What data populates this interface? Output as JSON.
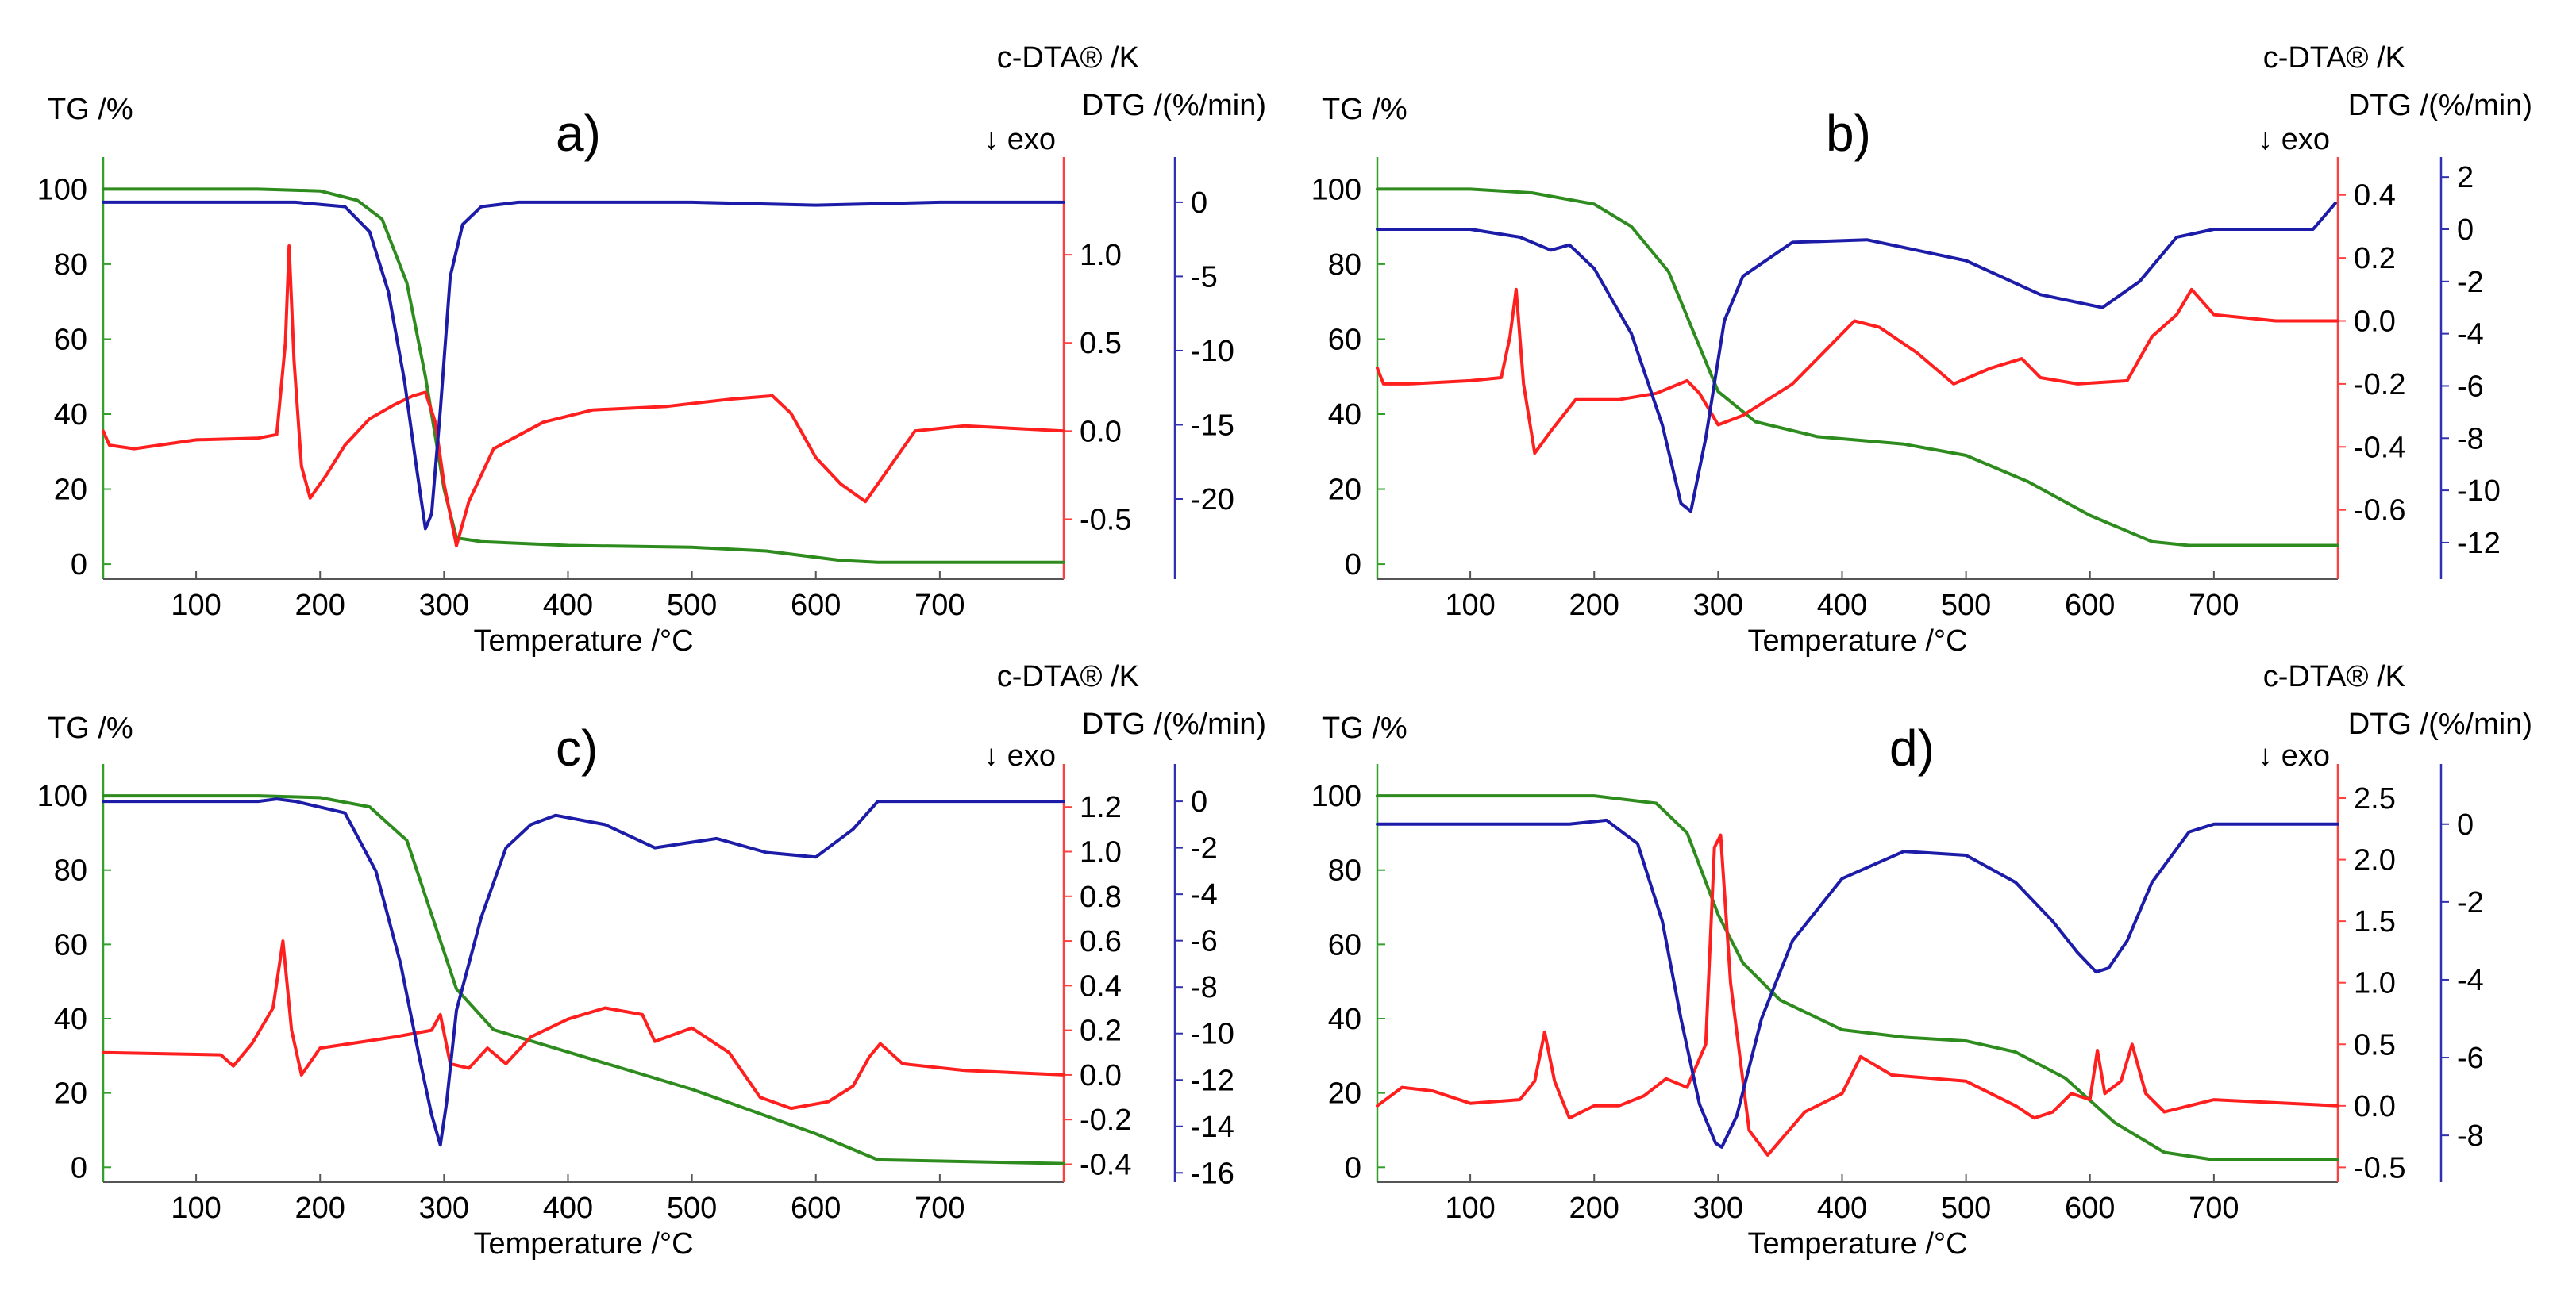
{
  "colors": {
    "tg": "#2e8b1e",
    "dta": "#ff1f1f",
    "dtg": "#1c1ca8",
    "tg_axis": "#33a02c",
    "dta_axis": "#ff4040",
    "dtg_axis": "#3030b0",
    "text": "#000000"
  },
  "chart_data": [
    {
      "panel": "a)",
      "type": "line",
      "title": "",
      "xlabel": "Temperature /°C",
      "xticks": [
        100,
        200,
        300,
        400,
        500,
        600,
        700
      ],
      "xlim": [
        25,
        800
      ],
      "axes": {
        "tg": {
          "label": "TG /%",
          "lim": [
            -4,
            106
          ],
          "ticks": [
            0,
            20,
            40,
            60,
            80,
            100
          ]
        },
        "dta": {
          "label": "c-DTA® /K",
          "exo": "↓ exo",
          "lim": [
            -0.84,
            1.5
          ],
          "ticks": [
            -0.5,
            0.0,
            0.5,
            1.0
          ],
          "tick_labels": [
            "-0.5",
            "0.0",
            "0.5",
            "1.0"
          ]
        },
        "dtg": {
          "label": "DTG /(%/min)",
          "lim": [
            -25.4,
            2.4
          ],
          "ticks": [
            -20,
            -15,
            -10,
            -5,
            0
          ]
        }
      },
      "series": [
        {
          "name": "TG",
          "axis": "tg",
          "x": [
            25,
            150,
            200,
            230,
            250,
            270,
            285,
            300,
            310,
            330,
            400,
            500,
            560,
            620,
            650,
            700,
            800
          ],
          "y": [
            100,
            100,
            99.5,
            97,
            92,
            75,
            50,
            20,
            7,
            6,
            5,
            4.5,
            3.5,
            1,
            0.5,
            0.5,
            0.5
          ]
        },
        {
          "name": "c-DTA",
          "axis": "dta",
          "x": [
            25,
            30,
            50,
            100,
            150,
            165,
            172,
            175,
            179,
            185,
            192,
            205,
            220,
            240,
            260,
            275,
            285,
            293,
            300,
            310,
            320,
            340,
            380,
            420,
            480,
            530,
            565,
            580,
            600,
            620,
            640,
            660,
            680,
            720,
            800
          ],
          "y": [
            0.0,
            -0.08,
            -0.1,
            -0.05,
            -0.04,
            -0.02,
            0.5,
            1.05,
            0.4,
            -0.2,
            -0.38,
            -0.25,
            -0.08,
            0.07,
            0.15,
            0.2,
            0.22,
            0.05,
            -0.3,
            -0.65,
            -0.4,
            -0.1,
            0.05,
            0.12,
            0.14,
            0.18,
            0.2,
            0.1,
            -0.15,
            -0.3,
            -0.4,
            -0.2,
            0.0,
            0.03,
            0.0
          ]
        },
        {
          "name": "DTG",
          "axis": "dtg",
          "x": [
            25,
            180,
            220,
            240,
            255,
            268,
            278,
            285,
            290,
            297,
            305,
            315,
            330,
            360,
            500,
            600,
            700,
            800
          ],
          "y": [
            0,
            0,
            -0.3,
            -2,
            -6,
            -12,
            -18,
            -22,
            -21,
            -14,
            -5,
            -1.5,
            -0.3,
            0,
            0,
            -0.2,
            0,
            0
          ]
        }
      ]
    },
    {
      "panel": "b)",
      "type": "line",
      "title": "",
      "xlabel": "Temperature /°C",
      "xticks": [
        100,
        200,
        300,
        400,
        500,
        600,
        700
      ],
      "xlim": [
        25,
        800
      ],
      "axes": {
        "tg": {
          "label": "TG /%",
          "lim": [
            -4,
            106
          ],
          "ticks": [
            0,
            20,
            40,
            60,
            80,
            100
          ]
        },
        "dta": {
          "label": "c-DTA® /K",
          "exo": "↓ exo",
          "lim": [
            -0.82,
            0.49
          ],
          "ticks": [
            -0.6,
            -0.4,
            -0.2,
            0.0,
            0.2,
            0.4
          ],
          "tick_labels": [
            "-0.6",
            "-0.4",
            "-0.2",
            "0.0",
            "0.2",
            "0.4"
          ]
        },
        "dtg": {
          "label": "DTG /(%/min)",
          "lim": [
            -13.4,
            2.4
          ],
          "ticks": [
            -12,
            -10,
            -8,
            -6,
            -4,
            -2,
            0,
            2
          ]
        }
      },
      "series": [
        {
          "name": "TG",
          "axis": "tg",
          "x": [
            25,
            100,
            150,
            200,
            230,
            260,
            280,
            300,
            330,
            380,
            450,
            500,
            550,
            600,
            650,
            680,
            800
          ],
          "y": [
            100,
            100,
            99,
            96,
            90,
            78,
            62,
            46,
            38,
            34,
            32,
            29,
            22,
            13,
            6,
            5,
            5
          ]
        },
        {
          "name": "c-DTA",
          "axis": "dta",
          "x": [
            25,
            30,
            50,
            100,
            125,
            132,
            137,
            143,
            152,
            165,
            185,
            220,
            250,
            275,
            285,
            300,
            320,
            360,
            390,
            410,
            430,
            460,
            490,
            520,
            545,
            560,
            590,
            630,
            650,
            670,
            682,
            700,
            750,
            800
          ],
          "y": [
            -0.15,
            -0.2,
            -0.2,
            -0.19,
            -0.18,
            -0.05,
            0.1,
            -0.2,
            -0.42,
            -0.35,
            -0.25,
            -0.25,
            -0.23,
            -0.19,
            -0.23,
            -0.33,
            -0.3,
            -0.2,
            -0.08,
            0.0,
            -0.02,
            -0.1,
            -0.2,
            -0.15,
            -0.12,
            -0.18,
            -0.2,
            -0.19,
            -0.05,
            0.02,
            0.1,
            0.02,
            0.0,
            0.0
          ]
        },
        {
          "name": "DTG",
          "axis": "dtg",
          "x": [
            25,
            100,
            140,
            165,
            180,
            200,
            230,
            255,
            270,
            278,
            290,
            305,
            320,
            360,
            420,
            500,
            560,
            610,
            640,
            670,
            700,
            780,
            798
          ],
          "y": [
            0,
            0,
            -0.3,
            -0.8,
            -0.6,
            -1.5,
            -4,
            -7.5,
            -10.5,
            -10.8,
            -8,
            -3.5,
            -1.8,
            -0.5,
            -0.4,
            -1.2,
            -2.5,
            -3.0,
            -2.0,
            -0.3,
            0,
            0,
            1.0
          ]
        }
      ]
    },
    {
      "panel": "c)",
      "type": "line",
      "title": "",
      "xlabel": "Temperature /°C",
      "xticks": [
        100,
        200,
        300,
        400,
        500,
        600,
        700
      ],
      "xlim": [
        25,
        800
      ],
      "axes": {
        "tg": {
          "label": "TG /%",
          "lim": [
            -4,
            106
          ],
          "ticks": [
            0,
            20,
            40,
            60,
            80,
            100
          ]
        },
        "dta": {
          "label": "c-DTA® /K",
          "exo": "↓ exo",
          "lim": [
            -0.48,
            1.35
          ],
          "ticks": [
            -0.4,
            -0.2,
            0.0,
            0.2,
            0.4,
            0.6,
            0.8,
            1.0,
            1.2
          ],
          "tick_labels": [
            "-0.4",
            "-0.2",
            "0.0",
            "0.2",
            "0.4",
            "0.6",
            "0.8",
            "1.0",
            "1.2"
          ]
        },
        "dtg": {
          "label": "DTG /(%/min)",
          "lim": [
            -16.4,
            1.2
          ],
          "ticks": [
            -16,
            -14,
            -12,
            -10,
            -8,
            -6,
            -4,
            -2,
            0
          ]
        }
      },
      "series": [
        {
          "name": "TG",
          "axis": "tg",
          "x": [
            25,
            150,
            200,
            240,
            270,
            290,
            310,
            340,
            400,
            500,
            600,
            650,
            800
          ],
          "y": [
            100,
            100,
            99.5,
            97,
            88,
            68,
            48,
            37,
            31,
            21,
            9,
            2,
            1
          ]
        },
        {
          "name": "c-DTA",
          "axis": "dta",
          "x": [
            25,
            120,
            130,
            145,
            162,
            170,
            177,
            185,
            200,
            260,
            290,
            297,
            305,
            320,
            335,
            350,
            370,
            400,
            430,
            460,
            470,
            500,
            530,
            555,
            580,
            610,
            630,
            643,
            652,
            670,
            720,
            800
          ],
          "y": [
            0.1,
            0.09,
            0.04,
            0.14,
            0.3,
            0.6,
            0.2,
            0.0,
            0.12,
            0.17,
            0.2,
            0.27,
            0.05,
            0.03,
            0.12,
            0.05,
            0.17,
            0.25,
            0.3,
            0.27,
            0.15,
            0.21,
            0.1,
            -0.1,
            -0.15,
            -0.12,
            -0.05,
            0.08,
            0.14,
            0.05,
            0.02,
            0.0
          ]
        },
        {
          "name": "DTG",
          "axis": "dtg",
          "x": [
            25,
            150,
            165,
            180,
            220,
            245,
            265,
            280,
            290,
            297,
            302,
            310,
            330,
            350,
            370,
            390,
            430,
            470,
            520,
            560,
            600,
            630,
            650,
            700,
            800
          ],
          "y": [
            0,
            0,
            0.1,
            0,
            -0.5,
            -3,
            -7,
            -11,
            -13.5,
            -14.8,
            -13,
            -9,
            -5,
            -2,
            -1,
            -0.6,
            -1.0,
            -2.0,
            -1.6,
            -2.2,
            -2.4,
            -1.2,
            0,
            0,
            0
          ]
        }
      ]
    },
    {
      "panel": "d)",
      "type": "line",
      "title": "",
      "xlabel": "Temperature /°C",
      "xticks": [
        100,
        200,
        300,
        400,
        500,
        600,
        700
      ],
      "xlim": [
        25,
        800
      ],
      "axes": {
        "tg": {
          "label": "TG /%",
          "lim": [
            -4,
            106
          ],
          "ticks": [
            0,
            20,
            40,
            60,
            80,
            100
          ]
        },
        "dta": {
          "label": "c-DTA® /K",
          "exo": "↓ exo",
          "lim": [
            -0.62,
            2.7
          ],
          "ticks": [
            -0.5,
            0.0,
            0.5,
            1.0,
            1.5,
            2.0,
            2.5
          ],
          "tick_labels": [
            "-0.5",
            "0.0",
            "0.5",
            "1.0",
            "1.5",
            "2.0",
            "2.5"
          ]
        },
        "dtg": {
          "label": "DTG /(%/min)",
          "lim": [
            -9.2,
            1.3
          ],
          "ticks": [
            -8,
            -6,
            -4,
            -2,
            0
          ]
        }
      },
      "series": [
        {
          "name": "TG",
          "axis": "tg",
          "x": [
            25,
            200,
            250,
            275,
            300,
            320,
            350,
            400,
            450,
            500,
            540,
            580,
            620,
            660,
            700,
            800
          ],
          "y": [
            100,
            100,
            98,
            90,
            68,
            55,
            45,
            37,
            35,
            34,
            31,
            24,
            12,
            4,
            2,
            2
          ]
        },
        {
          "name": "c-DTA",
          "axis": "dta",
          "x": [
            25,
            45,
            70,
            100,
            140,
            152,
            160,
            168,
            180,
            200,
            220,
            240,
            258,
            275,
            290,
            297,
            302,
            310,
            325,
            340,
            370,
            400,
            415,
            440,
            500,
            540,
            555,
            570,
            585,
            600,
            606,
            612,
            625,
            634,
            645,
            660,
            700,
            800
          ],
          "y": [
            0.0,
            0.15,
            0.12,
            0.02,
            0.05,
            0.2,
            0.6,
            0.2,
            -0.1,
            0.0,
            0.0,
            0.08,
            0.22,
            0.15,
            0.5,
            2.1,
            2.2,
            1.0,
            -0.2,
            -0.4,
            -0.05,
            0.1,
            0.4,
            0.25,
            0.2,
            0.0,
            -0.1,
            -0.05,
            0.1,
            0.05,
            0.45,
            0.1,
            0.2,
            0.5,
            0.1,
            -0.05,
            0.05,
            0.0
          ]
        },
        {
          "name": "DTG",
          "axis": "dtg",
          "x": [
            25,
            180,
            210,
            235,
            255,
            270,
            285,
            298,
            303,
            315,
            335,
            360,
            400,
            450,
            500,
            540,
            570,
            590,
            605,
            615,
            630,
            650,
            680,
            700,
            800
          ],
          "y": [
            0,
            0,
            0.1,
            -0.5,
            -2.5,
            -5,
            -7.2,
            -8.2,
            -8.3,
            -7.5,
            -5,
            -3,
            -1.4,
            -0.7,
            -0.8,
            -1.5,
            -2.5,
            -3.3,
            -3.8,
            -3.7,
            -3.0,
            -1.5,
            -0.2,
            0,
            0
          ]
        }
      ]
    }
  ]
}
